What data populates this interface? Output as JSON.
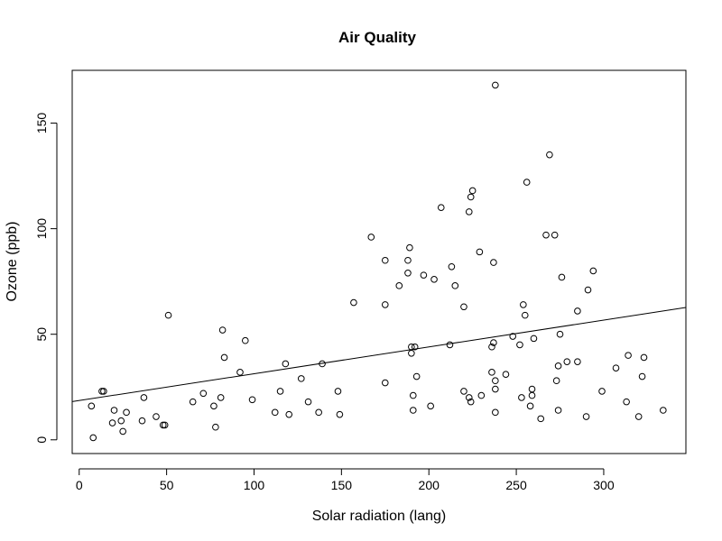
{
  "chart_data": {
    "type": "scatter",
    "title": "Air Quality",
    "xlabel": "Solar radiation (lang)",
    "ylabel": "Ozone (ppb)",
    "xlim": [
      -4,
      347
    ],
    "ylim": [
      -6.5,
      175
    ],
    "xticks": [
      0,
      50,
      100,
      150,
      200,
      250,
      300
    ],
    "yticks": [
      0,
      50,
      100,
      150
    ],
    "xtick_labels": [
      "0",
      "50",
      "100",
      "150",
      "200",
      "250",
      "300"
    ],
    "ytick_labels": [
      "0",
      "50",
      "100",
      "150"
    ],
    "marker": "open-circle",
    "grid": false,
    "legend": "none",
    "trend_line": {
      "intercept": 18.6,
      "slope": 0.127
    },
    "points": [
      [
        7,
        16
      ],
      [
        8,
        1
      ],
      [
        13,
        23
      ],
      [
        14,
        23
      ],
      [
        19,
        8
      ],
      [
        20,
        14
      ],
      [
        24,
        9
      ],
      [
        25,
        4
      ],
      [
        27,
        13
      ],
      [
        36,
        9
      ],
      [
        37,
        20
      ],
      [
        44,
        11
      ],
      [
        48,
        7
      ],
      [
        49,
        7
      ],
      [
        51,
        59
      ],
      [
        65,
        18
      ],
      [
        71,
        22
      ],
      [
        77,
        16
      ],
      [
        78,
        6
      ],
      [
        81,
        20
      ],
      [
        82,
        52
      ],
      [
        83,
        39
      ],
      [
        92,
        32
      ],
      [
        95,
        47
      ],
      [
        99,
        19
      ],
      [
        112,
        13
      ],
      [
        115,
        23
      ],
      [
        118,
        36
      ],
      [
        120,
        12
      ],
      [
        127,
        29
      ],
      [
        131,
        18
      ],
      [
        137,
        13
      ],
      [
        139,
        36
      ],
      [
        148,
        23
      ],
      [
        149,
        12
      ],
      [
        157,
        65
      ],
      [
        167,
        96
      ],
      [
        175,
        85
      ],
      [
        175,
        64
      ],
      [
        175,
        27
      ],
      [
        183,
        73
      ],
      [
        188,
        79
      ],
      [
        188,
        85
      ],
      [
        189,
        91
      ],
      [
        190,
        44
      ],
      [
        190,
        41
      ],
      [
        191,
        21
      ],
      [
        191,
        14
      ],
      [
        192,
        44
      ],
      [
        193,
        30
      ],
      [
        197,
        78
      ],
      [
        201,
        16
      ],
      [
        203,
        76
      ],
      [
        207,
        110
      ],
      [
        212,
        45
      ],
      [
        213,
        82
      ],
      [
        215,
        73
      ],
      [
        220,
        63
      ],
      [
        220,
        23
      ],
      [
        223,
        108
      ],
      [
        223,
        20
      ],
      [
        224,
        18
      ],
      [
        224,
        115
      ],
      [
        225,
        118
      ],
      [
        229,
        89
      ],
      [
        230,
        21
      ],
      [
        236,
        44
      ],
      [
        236,
        32
      ],
      [
        237,
        46
      ],
      [
        237,
        84
      ],
      [
        238,
        168
      ],
      [
        238,
        28
      ],
      [
        238,
        24
      ],
      [
        238,
        13
      ],
      [
        244,
        31
      ],
      [
        248,
        49
      ],
      [
        252,
        45
      ],
      [
        253,
        20
      ],
      [
        254,
        64
      ],
      [
        255,
        59
      ],
      [
        256,
        122
      ],
      [
        258,
        16
      ],
      [
        259,
        21
      ],
      [
        259,
        24
      ],
      [
        260,
        48
      ],
      [
        264,
        10
      ],
      [
        267,
        97
      ],
      [
        269,
        135
      ],
      [
        272,
        97
      ],
      [
        273,
        28
      ],
      [
        274,
        14
      ],
      [
        274,
        35
      ],
      [
        275,
        50
      ],
      [
        276,
        77
      ],
      [
        279,
        37
      ],
      [
        285,
        37
      ],
      [
        285,
        61
      ],
      [
        290,
        11
      ],
      [
        291,
        71
      ],
      [
        294,
        80
      ],
      [
        299,
        23
      ],
      [
        307,
        34
      ],
      [
        313,
        18
      ],
      [
        314,
        40
      ],
      [
        320,
        11
      ],
      [
        322,
        30
      ],
      [
        323,
        39
      ],
      [
        334,
        14
      ]
    ]
  }
}
